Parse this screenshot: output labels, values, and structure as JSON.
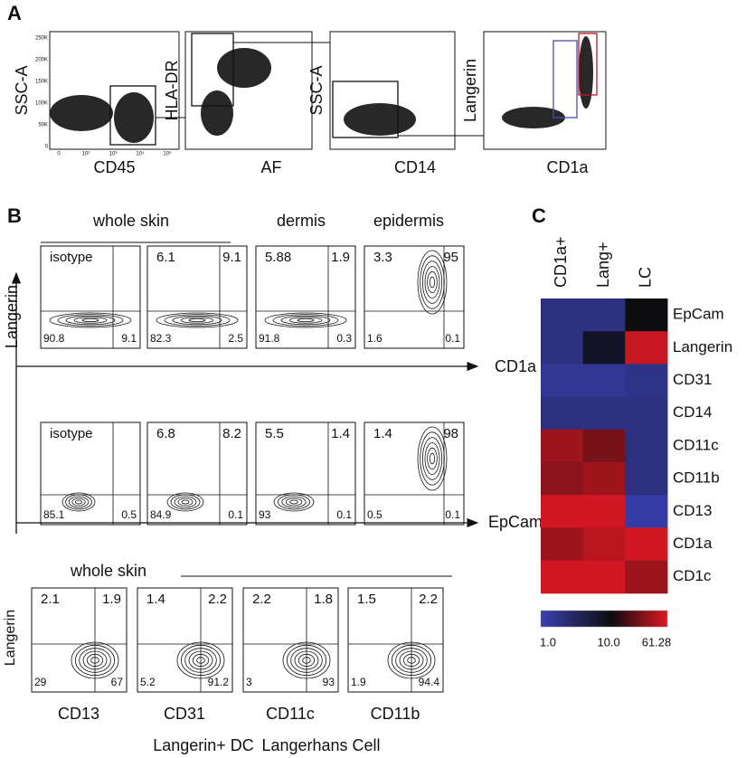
{
  "panel_a": {
    "label": "A",
    "plots": [
      {
        "y_label": "SSC-A",
        "x_label": "CD45",
        "yticks": [
          "250K",
          "200K",
          "150K",
          "100K",
          "50K",
          "0"
        ],
        "xticks": [
          "0",
          "10²",
          "10³",
          "10⁴",
          "10⁵"
        ]
      },
      {
        "y_label": "HLA-DR",
        "x_label": "AF"
      },
      {
        "y_label": "SSC-A",
        "x_label": "CD14"
      },
      {
        "y_label": "Langerin",
        "x_label": "CD1a"
      }
    ]
  },
  "panel_b": {
    "label": "B",
    "headers": [
      "whole skin",
      "dermis",
      "epidermis"
    ],
    "y_label": "Langerin",
    "rows": [
      {
        "x_label": "CD1a",
        "plots": [
          {
            "name": "isotype",
            "bl": 90.8,
            "br": 9.1
          },
          {
            "tl": 6.1,
            "tr": 9.1,
            "bl": 82.3,
            "br": 2.5
          },
          {
            "tl": 5.88,
            "tr": 1.9,
            "bl": 91.8,
            "br": 0.3
          },
          {
            "tl": 3.3,
            "tr": 95,
            "bl": 1.6,
            "br": 0.1
          }
        ]
      },
      {
        "x_label": "EpCam",
        "plots": [
          {
            "name": "isotype",
            "bl": 85.1,
            "br": 0.5
          },
          {
            "tl": 6.8,
            "tr": 8.2,
            "bl": 84.9,
            "br": 0.1
          },
          {
            "tl": 5.5,
            "tr": 1.4,
            "bl": 93,
            "br": 0.1
          },
          {
            "tl": 1.4,
            "tr": 98,
            "bl": 0.5,
            "br": 0.1
          }
        ]
      }
    ],
    "bottom": {
      "header": "whole skin",
      "y_label": "Langerin",
      "plots": [
        {
          "x_label": "CD13",
          "tl": 2.1,
          "tr": 1.9,
          "bl": 29,
          "br": 67
        },
        {
          "x_label": "CD31",
          "tl": 1.4,
          "tr": 2.2,
          "bl": 5.2,
          "br": 91.2
        },
        {
          "x_label": "CD11c",
          "tl": 2.2,
          "tr": 1.8,
          "bl": 3,
          "br": 93
        },
        {
          "x_label": "CD11b",
          "tl": 1.5,
          "tr": 2.2,
          "bl": 1.9,
          "br": 94.4
        }
      ]
    },
    "legend": [
      {
        "name": "Langerin+ DC",
        "color": "#4b4fa8"
      },
      {
        "name": "Langerhans Cell",
        "color": "#c8102e"
      }
    ]
  },
  "panel_c": {
    "label": "C",
    "columns": [
      "CD1a+",
      "Lang+",
      "LC"
    ],
    "rows": [
      "EpCam",
      "Langerin",
      "CD31",
      "CD14",
      "CD11c",
      "CD11b",
      "CD13",
      "CD1a",
      "CD1c"
    ],
    "values": [
      [
        2,
        2,
        10
      ],
      [
        2,
        7,
        50
      ],
      [
        1.5,
        1.5,
        1.8
      ],
      [
        2,
        2,
        2
      ],
      [
        35,
        25,
        2
      ],
      [
        30,
        35,
        2
      ],
      [
        55,
        55,
        1.2
      ],
      [
        35,
        45,
        55
      ],
      [
        55,
        55,
        35
      ]
    ],
    "scale_ticks": [
      {
        "value": 1,
        "label": "1.0"
      },
      {
        "value": 10,
        "label": "10.0"
      },
      61.28
    ]
  }
}
